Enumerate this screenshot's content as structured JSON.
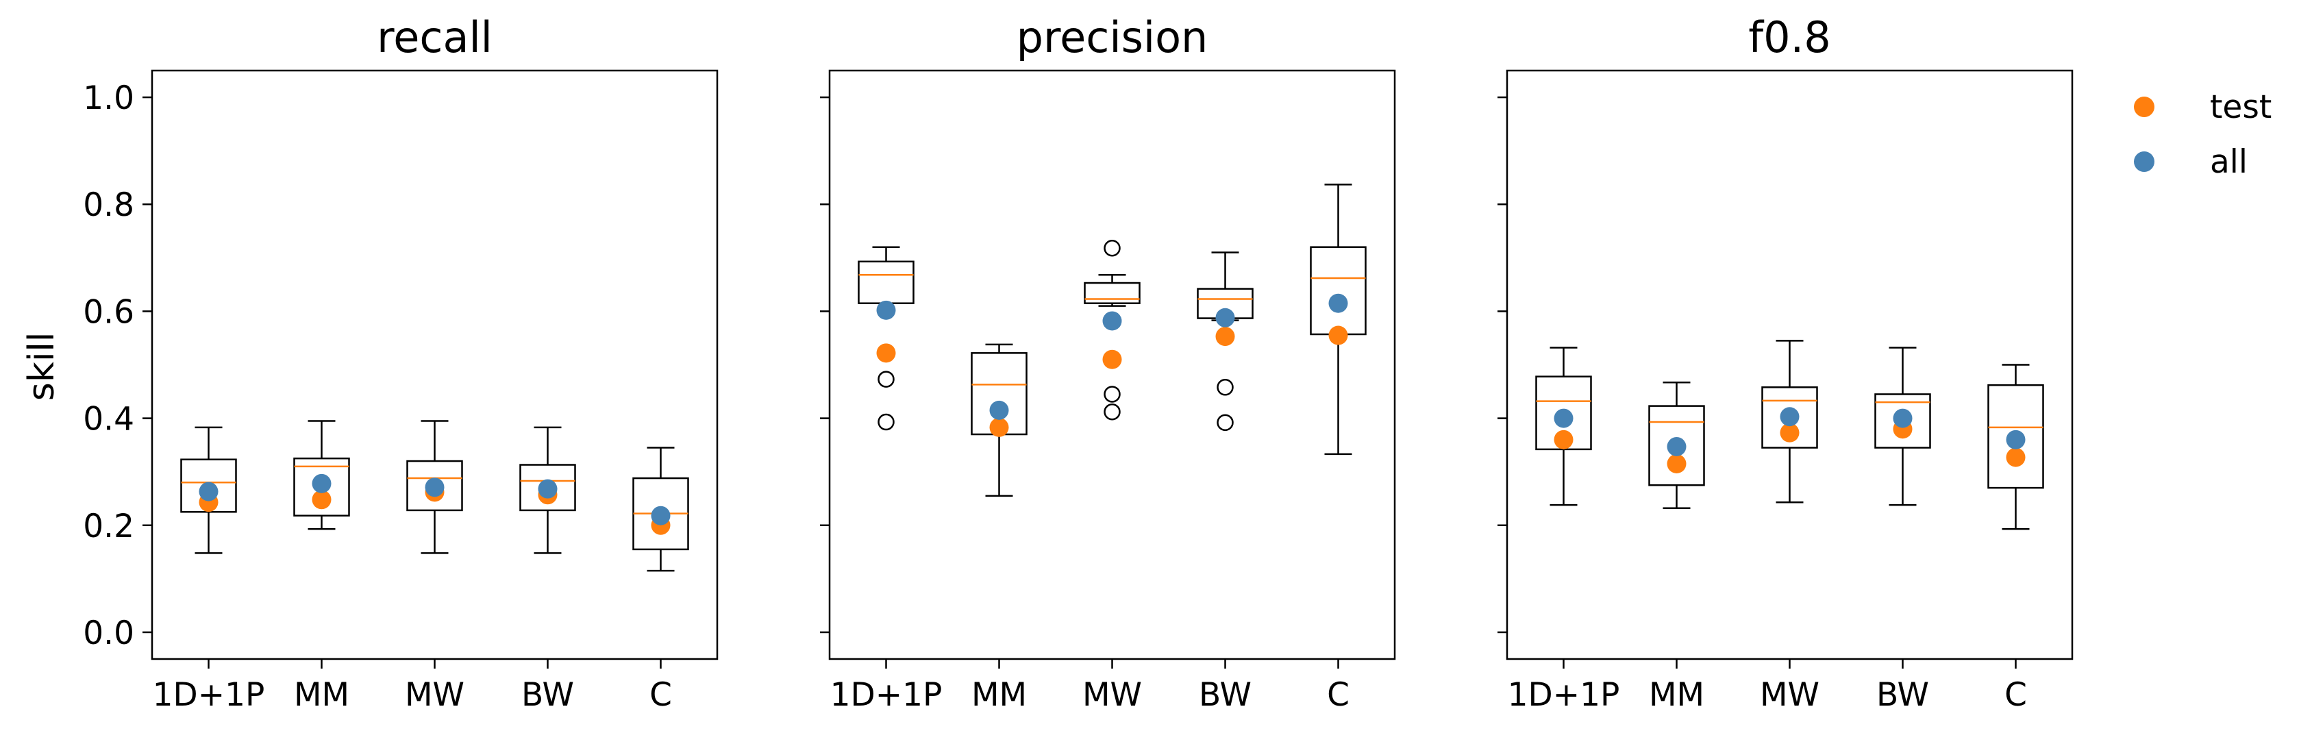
{
  "chart_data": [
    {
      "type": "box",
      "title": "recall",
      "ylabel": "skill",
      "ylim": [
        -0.05,
        1.05
      ],
      "yticks": [
        "0.0",
        "0.2",
        "0.4",
        "0.6",
        "0.8",
        "1.0"
      ],
      "categories": [
        "1D+1P",
        "MM",
        "MW",
        "BW",
        "C"
      ],
      "boxes": [
        {
          "whislo": 0.148,
          "q1": 0.225,
          "med": 0.28,
          "q3": 0.323,
          "whishi": 0.383,
          "fliers": []
        },
        {
          "whislo": 0.193,
          "q1": 0.218,
          "med": 0.31,
          "q3": 0.325,
          "whishi": 0.395,
          "fliers": []
        },
        {
          "whislo": 0.148,
          "q1": 0.228,
          "med": 0.288,
          "q3": 0.32,
          "whishi": 0.395,
          "fliers": []
        },
        {
          "whislo": 0.148,
          "q1": 0.228,
          "med": 0.283,
          "q3": 0.313,
          "whishi": 0.383,
          "fliers": []
        },
        {
          "whislo": 0.115,
          "q1": 0.155,
          "med": 0.222,
          "q3": 0.288,
          "whishi": 0.345,
          "fliers": []
        }
      ],
      "series": [
        {
          "name": "test",
          "color": "#ff7f0e",
          "values": [
            0.243,
            0.248,
            0.262,
            0.257,
            0.2
          ]
        },
        {
          "name": "all",
          "color": "#4682b4",
          "values": [
            0.263,
            0.278,
            0.271,
            0.268,
            0.218
          ]
        }
      ]
    },
    {
      "type": "box",
      "title": "precision",
      "ylim": [
        -0.05,
        1.05
      ],
      "categories": [
        "1D+1P",
        "MM",
        "MW",
        "BW",
        "C"
      ],
      "boxes": [
        {
          "whislo": 0.615,
          "q1": 0.615,
          "med": 0.668,
          "q3": 0.693,
          "whishi": 0.72,
          "fliers": [
            0.393,
            0.473
          ]
        },
        {
          "whislo": 0.255,
          "q1": 0.37,
          "med": 0.463,
          "q3": 0.522,
          "whishi": 0.538,
          "fliers": []
        },
        {
          "whislo": 0.61,
          "q1": 0.615,
          "med": 0.623,
          "q3": 0.653,
          "whishi": 0.668,
          "fliers": [
            0.412,
            0.445,
            0.718
          ]
        },
        {
          "whislo": 0.583,
          "q1": 0.587,
          "med": 0.623,
          "q3": 0.642,
          "whishi": 0.71,
          "fliers": [
            0.392,
            0.458
          ]
        },
        {
          "whislo": 0.333,
          "q1": 0.557,
          "med": 0.662,
          "q3": 0.72,
          "whishi": 0.837,
          "fliers": []
        }
      ],
      "series": [
        {
          "name": "test",
          "color": "#ff7f0e",
          "values": [
            0.522,
            0.383,
            0.51,
            0.553,
            0.555
          ]
        },
        {
          "name": "all",
          "color": "#4682b4",
          "values": [
            0.602,
            0.415,
            0.582,
            0.588,
            0.615
          ]
        }
      ]
    },
    {
      "type": "box",
      "title": "f0.8",
      "ylim": [
        -0.05,
        1.05
      ],
      "categories": [
        "1D+1P",
        "MM",
        "MW",
        "BW",
        "C"
      ],
      "boxes": [
        {
          "whislo": 0.238,
          "q1": 0.342,
          "med": 0.432,
          "q3": 0.478,
          "whishi": 0.532,
          "fliers": []
        },
        {
          "whislo": 0.232,
          "q1": 0.275,
          "med": 0.393,
          "q3": 0.423,
          "whishi": 0.467,
          "fliers": []
        },
        {
          "whislo": 0.243,
          "q1": 0.345,
          "med": 0.433,
          "q3": 0.458,
          "whishi": 0.545,
          "fliers": []
        },
        {
          "whislo": 0.238,
          "q1": 0.345,
          "med": 0.43,
          "q3": 0.445,
          "whishi": 0.532,
          "fliers": []
        },
        {
          "whislo": 0.193,
          "q1": 0.27,
          "med": 0.383,
          "q3": 0.462,
          "whishi": 0.5,
          "fliers": []
        }
      ],
      "series": [
        {
          "name": "test",
          "color": "#ff7f0e",
          "values": [
            0.36,
            0.315,
            0.373,
            0.38,
            0.327
          ]
        },
        {
          "name": "all",
          "color": "#4682b4",
          "values": [
            0.4,
            0.347,
            0.403,
            0.4,
            0.36
          ]
        }
      ]
    }
  ],
  "legend": {
    "position": "top-right-outside",
    "items": [
      {
        "label": "test",
        "color": "#ff7f0e"
      },
      {
        "label": "all",
        "color": "#4682b4"
      }
    ]
  },
  "style": {
    "median_color": "#ff7f0e",
    "box_color": "#000000"
  }
}
